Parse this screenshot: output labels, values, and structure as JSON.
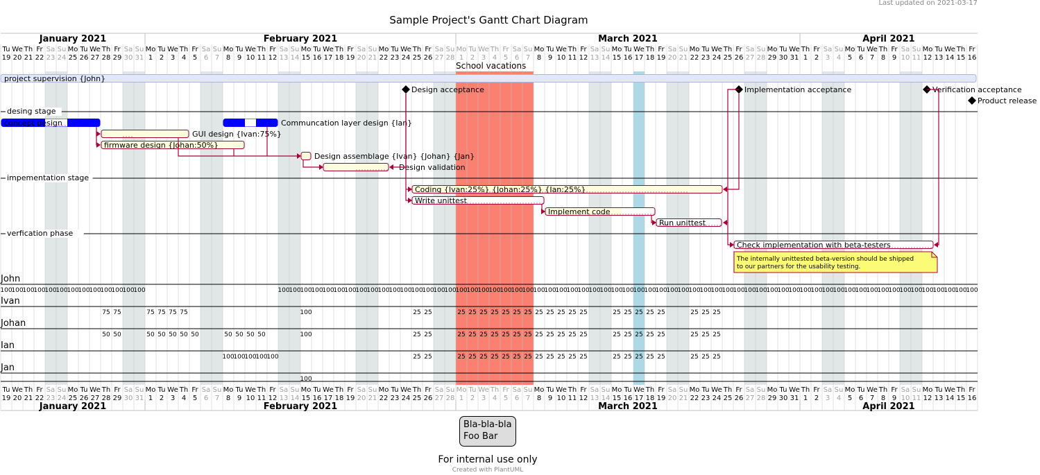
{
  "header": {
    "last_updated": "Last updated on 2021-03-17",
    "title": "Sample Project's Gantt Chart Diagram"
  },
  "calendar": {
    "start": "2021-01-19",
    "end": "2021-04-16",
    "months": [
      {
        "label": "January 2021"
      },
      {
        "label": "February 2021"
      },
      {
        "label": "March 2021"
      },
      {
        "label": "April 2021"
      }
    ],
    "weekday_labels": [
      "Mo",
      "Tu",
      "We",
      "Th",
      "Fr",
      "Sa",
      "Su"
    ],
    "closed_days": [
      "2021-03-01",
      "2021-03-02",
      "2021-03-03",
      "2021-03-04",
      "2021-03-05",
      "2021-03-06",
      "2021-03-07"
    ],
    "vacation_label": "School vacations",
    "colors": {
      "weekend": "#E1E7E7",
      "vacation": "#FA8072",
      "today": "#ADD8E6",
      "task_fill": "#FFFFE0",
      "task_border": "#A80036",
      "arrow": "#A80036",
      "concept_fill": "#0000FF",
      "supervision_fill": "#E3E8F8",
      "supervision_border": "#A9B5DB",
      "note_fill": "#FBFB77",
      "legend_fill": "#DDDDDD"
    },
    "today": "2021-03-17"
  },
  "separators": [
    {
      "label": "desing stage"
    },
    {
      "label": "impementation stage"
    },
    {
      "label": "verfication phase"
    }
  ],
  "tasks": [
    {
      "label": "project supervision {John}",
      "style": "supervision"
    },
    {
      "label": "concept design",
      "style": "concept"
    },
    {
      "label": "GUI design {Ivan:75%}",
      "style": "normal"
    },
    {
      "label": "firmware design {Johan:50%}",
      "style": "normal"
    },
    {
      "label": "Communcation layer design {Ian}",
      "style": "comm"
    },
    {
      "label": "Design assemblage {Ivan} {Johan} {Jan}",
      "style": "normal"
    },
    {
      "label": "Design validation",
      "style": "normal"
    },
    {
      "label": "Coding {Ivan:25%} {Johan:25%} {Ian:25%}",
      "style": "normal"
    },
    {
      "label": "Write unittest",
      "style": "normal"
    },
    {
      "label": "Implement code",
      "style": "normal"
    },
    {
      "label": "Run unittest",
      "style": "normal"
    },
    {
      "label": "Check implementation with beta-testers",
      "style": "normal"
    }
  ],
  "milestones": [
    {
      "label": "Design acceptance"
    },
    {
      "label": "Implementation acceptance"
    },
    {
      "label": "Verification acceptance"
    },
    {
      "label": "Product release"
    }
  ],
  "note": {
    "lines": [
      "The internally unittested beta-version should be shipped",
      "to our partners for the usability testing."
    ]
  },
  "resources": [
    {
      "name": "John",
      "segments": [
        {
          "from": "2021-01-19",
          "to": "2021-01-31",
          "value": "100"
        },
        {
          "from": "2021-02-13",
          "to": "2021-04-16",
          "value": "100"
        }
      ]
    },
    {
      "name": "Ivan",
      "segments": [
        {
          "from": "2021-01-28",
          "to": "2021-02-04",
          "value": "75"
        },
        {
          "from": "2021-02-15",
          "to": "2021-02-15",
          "value": "100"
        },
        {
          "from": "2021-02-25",
          "to": "2021-03-24",
          "value": "25"
        }
      ]
    },
    {
      "name": "Johan",
      "segments": [
        {
          "from": "2021-01-28",
          "to": "2021-02-11",
          "value": "50"
        },
        {
          "from": "2021-02-15",
          "to": "2021-02-15",
          "value": "100"
        },
        {
          "from": "2021-02-25",
          "to": "2021-03-24",
          "value": "25"
        }
      ]
    },
    {
      "name": "Ian",
      "segments": [
        {
          "from": "2021-02-08",
          "to": "2021-02-12",
          "value": "100"
        },
        {
          "from": "2021-02-25",
          "to": "2021-03-24",
          "value": "25"
        }
      ]
    },
    {
      "name": "Jan",
      "segments": [
        {
          "from": "2021-02-15",
          "to": "2021-02-15",
          "value": "100"
        }
      ]
    }
  ],
  "legend": {
    "line1": "Bla-bla-bla",
    "line2": "Foo Bar"
  },
  "footer": {
    "caption": "For internal use only",
    "credit": "Created with PlantUML"
  }
}
